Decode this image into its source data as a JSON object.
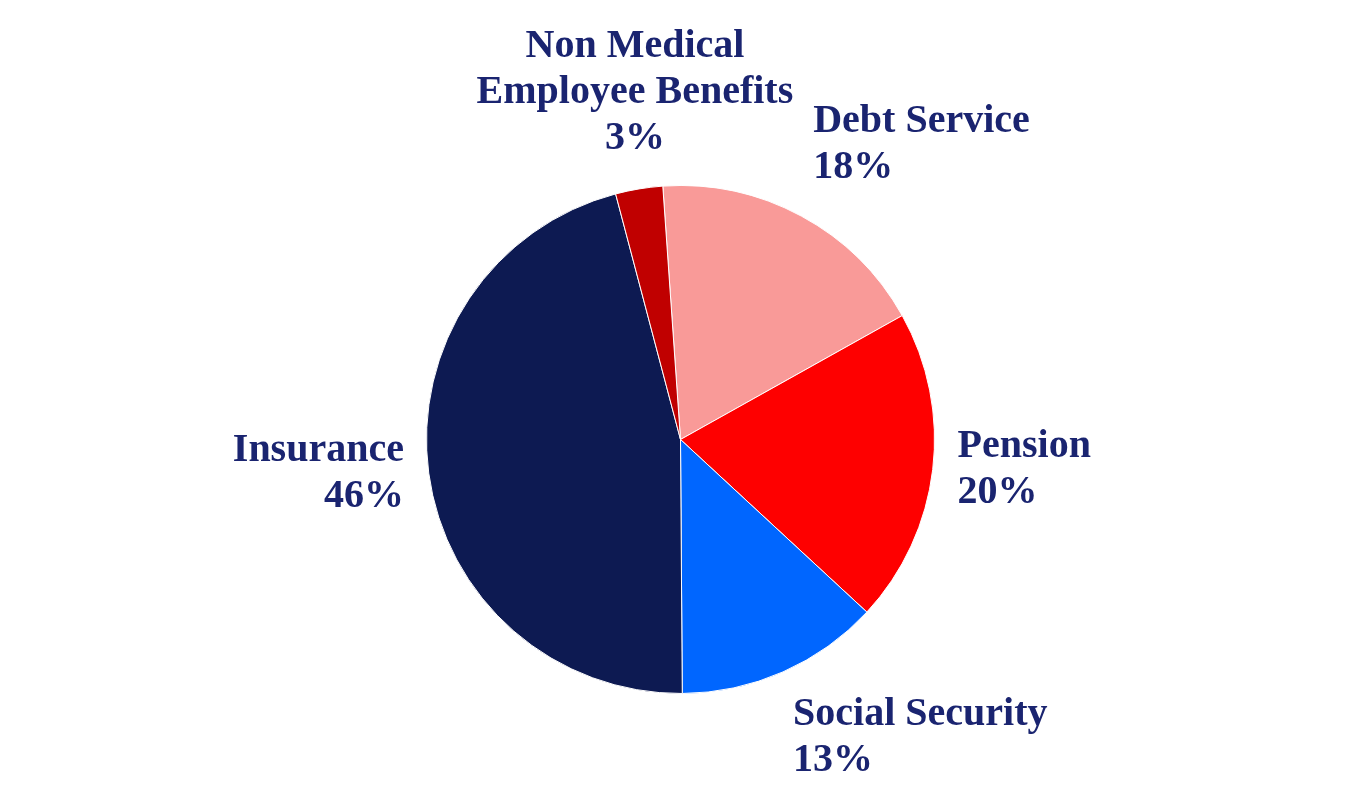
{
  "chart_data": {
    "type": "pie",
    "categories": [
      "Debt Service",
      "Pension",
      "Social Security",
      "Insurance",
      "Non Medical Employee Benefits"
    ],
    "values": [
      18,
      20,
      13,
      46,
      3
    ],
    "colors": [
      "#f99a98",
      "#fe0000",
      "#0066ff",
      "#0d1a52",
      "#c00000"
    ],
    "value_labels": [
      "18%",
      "20%",
      "13%",
      "46%",
      "3%"
    ],
    "legend": false
  }
}
